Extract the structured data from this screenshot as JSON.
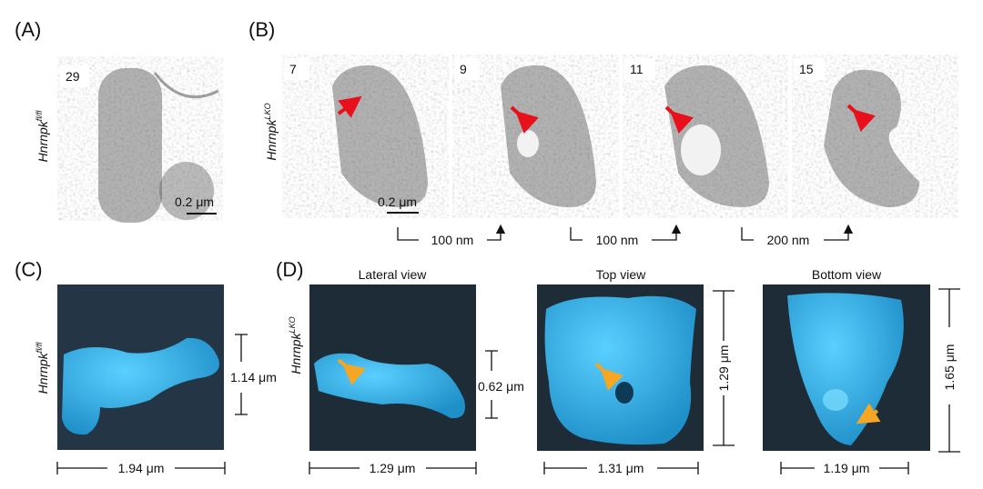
{
  "panel_a": {
    "label": "(A)",
    "genotype": {
      "gene": "Hnrnpk",
      "allele": "fl/fl"
    },
    "frame": "29",
    "scale_bar": "0.2 μm"
  },
  "panel_b": {
    "label": "(B)",
    "genotype": {
      "gene": "Hnrnpk",
      "allele": "LKO"
    },
    "frames": [
      "7",
      "9",
      "11",
      "15"
    ],
    "scale_bar": "0.2 μm",
    "spacings": [
      "100 nm",
      "100 nm",
      "200 nm"
    ]
  },
  "panel_c": {
    "label": "(C)",
    "genotype": {
      "gene": "Hnrnpk",
      "allele": "fl/fl"
    },
    "height": "1.14 μm",
    "width": "1.94 μm"
  },
  "panel_d": {
    "label": "(D)",
    "genotype": {
      "gene": "Hnrnpk",
      "allele": "LKO"
    },
    "views": [
      {
        "title": "Lateral view",
        "width": "1.29 μm",
        "height": "0.62 μm"
      },
      {
        "title": "Top view",
        "width": "1.31 μm",
        "height": "1.29 μm"
      },
      {
        "title": "Bottom view",
        "width": "1.19 μm",
        "height": "1.65 μm"
      }
    ]
  }
}
